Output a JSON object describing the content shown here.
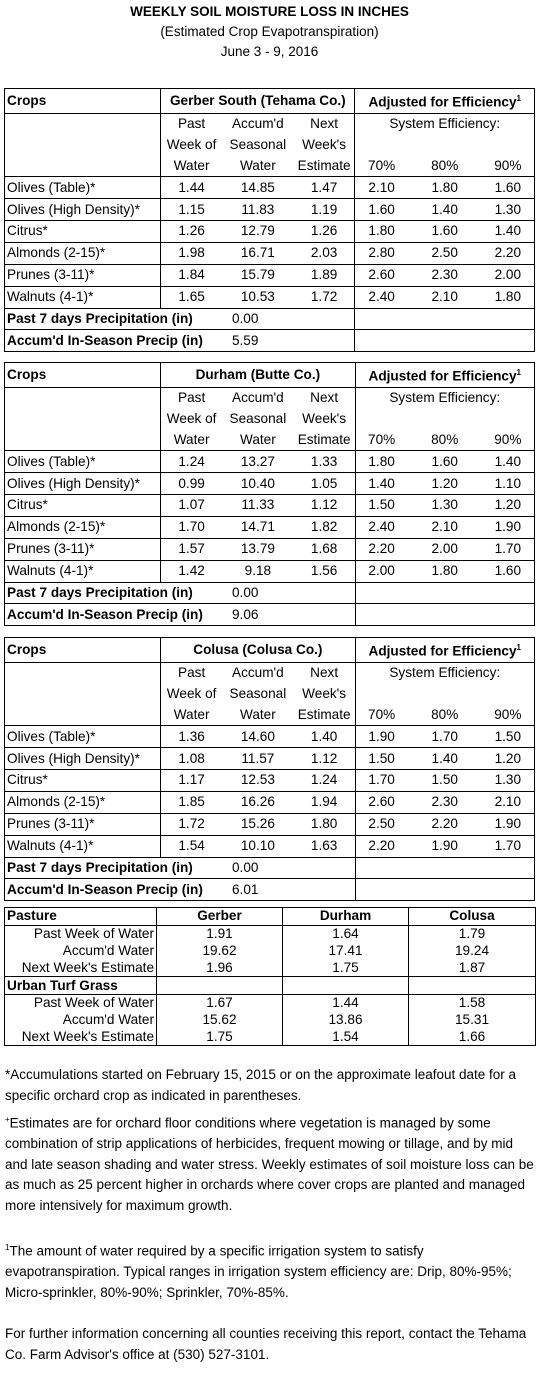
{
  "title": "WEEKLY SOIL MOISTURE LOSS IN INCHES",
  "subtitle": "(Estimated Crop Evapotranspiration)",
  "dates": "June 3 - 9, 2016",
  "hdr": {
    "crops": "Crops",
    "adjusted": "Adjusted for Efficiency",
    "sup1": "1",
    "system_eff": "System Efficiency:",
    "past1": "Past",
    "past2": "Week of",
    "past3": "Water",
    "acc1": "Accum'd",
    "acc2": "Seasonal",
    "acc3": "Water",
    "next1": "Next",
    "next2": "Week's",
    "next3": "Estimate",
    "e70": "70%",
    "e80": "80%",
    "e90": "90%",
    "precip7": "Past 7 days Precipitation (in)",
    "precip_season": "Accum'd In-Season Precip (in)"
  },
  "sections": [
    {
      "location": "Gerber South (Tehama Co.)",
      "rows": [
        [
          "Olives (Table)*",
          "1.44",
          "14.85",
          "1.47",
          "2.10",
          "1.80",
          "1.60"
        ],
        [
          "Olives (High Density)*",
          "1.15",
          "11.83",
          "1.19",
          "1.60",
          "1.40",
          "1.30"
        ],
        [
          "Citrus*",
          "1.26",
          "12.79",
          "1.26",
          "1.80",
          "1.60",
          "1.40"
        ],
        [
          "Almonds (2-15)*",
          "1.98",
          "16.71",
          "2.03",
          "2.80",
          "2.50",
          "2.20"
        ],
        [
          "Prunes (3-11)*",
          "1.84",
          "15.79",
          "1.89",
          "2.60",
          "2.30",
          "2.00"
        ],
        [
          "Walnuts (4-1)*",
          "1.65",
          "10.53",
          "1.72",
          "2.40",
          "2.10",
          "1.80"
        ]
      ],
      "precip7": "0.00",
      "precip_season": "5.59"
    },
    {
      "location": "Durham (Butte Co.)",
      "rows": [
        [
          "Olives (Table)*",
          "1.24",
          "13.27",
          "1.33",
          "1.80",
          "1.60",
          "1.40"
        ],
        [
          "Olives (High Density)*",
          "0.99",
          "10.40",
          "1.05",
          "1.40",
          "1.20",
          "1.10"
        ],
        [
          "Citrus*",
          "1.07",
          "11.33",
          "1.12",
          "1.50",
          "1.30",
          "1.20"
        ],
        [
          "Almonds (2-15)*",
          "1.70",
          "14.71",
          "1.82",
          "2.40",
          "2.10",
          "1.90"
        ],
        [
          "Prunes (3-11)*",
          "1.57",
          "13.79",
          "1.68",
          "2.20",
          "2.00",
          "1.70"
        ],
        [
          "Walnuts (4-1)*",
          "1.42",
          "9.18",
          "1.56",
          "2.00",
          "1.80",
          "1.60"
        ]
      ],
      "precip7": "0.00",
      "precip_season": "9.06"
    },
    {
      "location": "Colusa (Colusa Co.)",
      "rows": [
        [
          "Olives (Table)*",
          "1.36",
          "14.60",
          "1.40",
          "1.90",
          "1.70",
          "1.50"
        ],
        [
          "Olives (High Density)*",
          "1.08",
          "11.57",
          "1.12",
          "1.50",
          "1.40",
          "1.20"
        ],
        [
          "Citrus*",
          "1.17",
          "12.53",
          "1.24",
          "1.70",
          "1.50",
          "1.30"
        ],
        [
          "Almonds (2-15)*",
          "1.85",
          "16.26",
          "1.94",
          "2.60",
          "2.30",
          "2.10"
        ],
        [
          "Prunes (3-11)*",
          "1.72",
          "15.26",
          "1.80",
          "2.50",
          "2.20",
          "1.90"
        ],
        [
          "Walnuts (4-1)*",
          "1.54",
          "10.10",
          "1.63",
          "2.20",
          "1.90",
          "1.70"
        ]
      ],
      "precip7": "0.00",
      "precip_season": "6.01"
    }
  ],
  "pasture": {
    "heading": "Pasture",
    "columns": [
      "Gerber",
      "Durham",
      "Colusa"
    ],
    "rows": [
      [
        "Past Week of Water",
        "1.91",
        "1.64",
        "1.79"
      ],
      [
        "Accum'd Water",
        "19.62",
        "17.41",
        "19.24"
      ],
      [
        "Next Week's Estimate",
        "1.96",
        "1.75",
        "1.87"
      ]
    ]
  },
  "turf": {
    "heading": "Urban Turf Grass",
    "rows": [
      [
        "Past Week of Water",
        "1.67",
        "1.44",
        "1.58"
      ],
      [
        "Accum'd Water",
        "15.62",
        "13.86",
        "15.31"
      ],
      [
        "Next Week's Estimate",
        "1.75",
        "1.54",
        "1.66"
      ]
    ]
  },
  "notes": {
    "n1": "*Accumulations started on February 15, 2015 or on the approximate leafout date for a specific orchard crop as indicated in parentheses.",
    "n2_mark": "+",
    "n2": "Estimates are for orchard floor conditions where vegetation is managed by some combination of strip applications of herbicides, frequent mowing or tillage, and by mid and late season shading and water stress.  Weekly estimates of soil moisture loss can be as much as 25 percent higher in orchards where cover crops are planted and managed more intensively for maximum growth.",
    "n3_mark": "1",
    "n3": "The amount of water required by a specific irrigation system to satisfy evapotranspiration. Typical ranges in irrigation system efficiency are: Drip, 80%-95%; Micro-sprinkler, 80%-90%; Sprinkler, 70%-85%.",
    "n4": "For further information concerning all counties receiving this report, contact the Tehama Co. Farm Advisor's office at (530) 527-3101."
  }
}
